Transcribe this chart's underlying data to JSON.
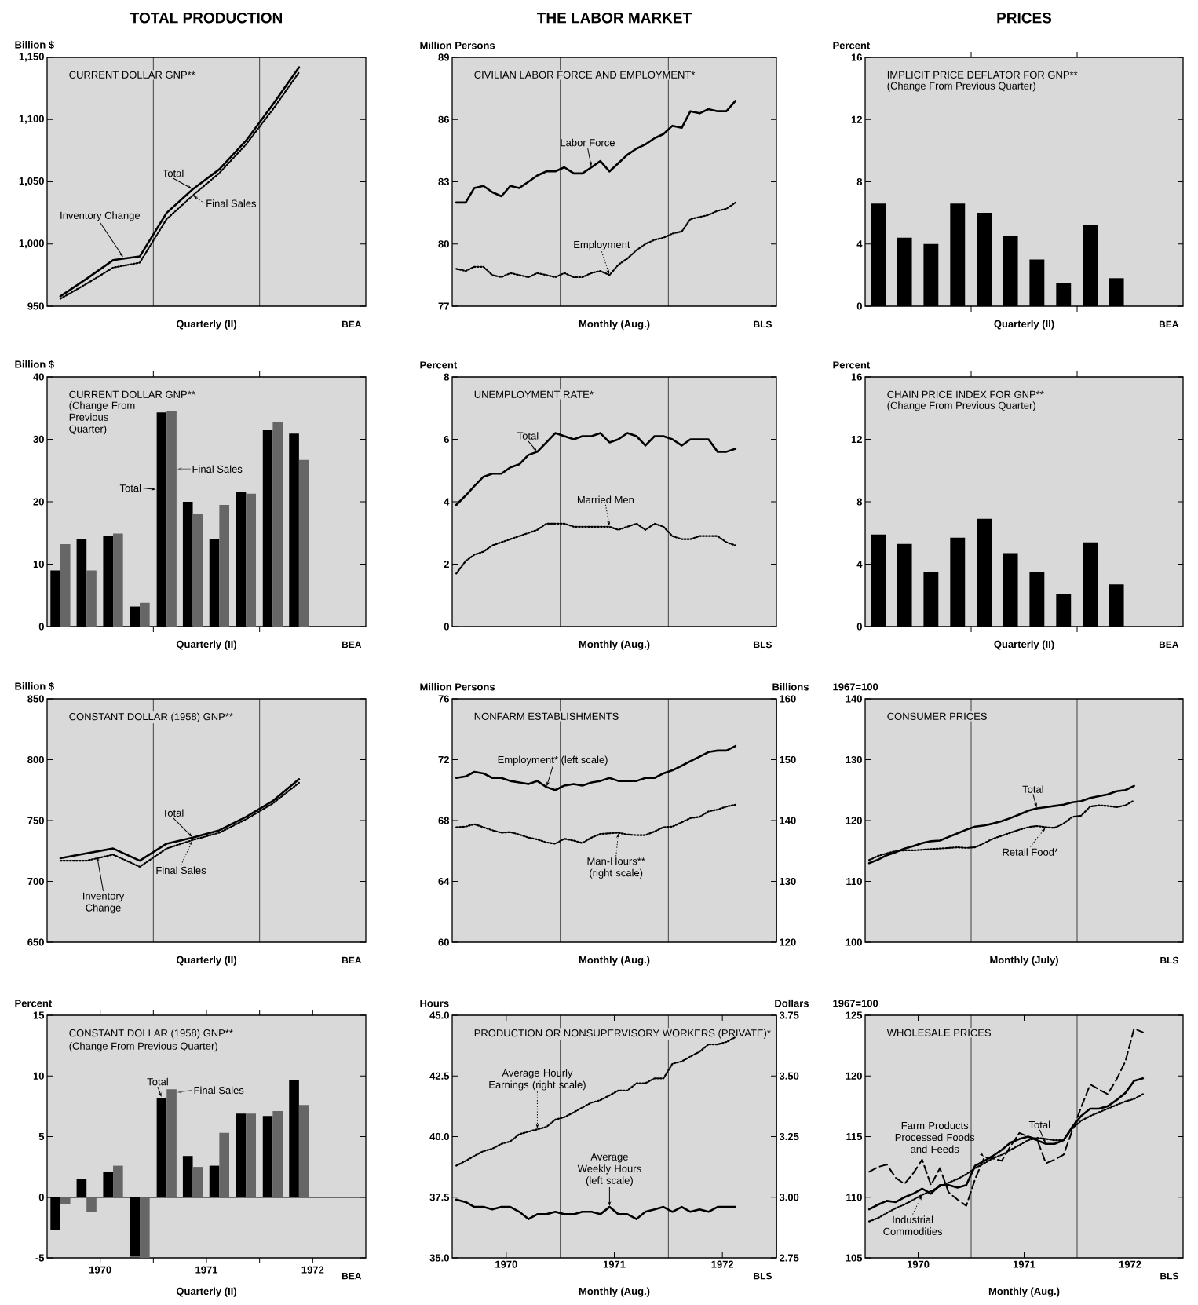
{
  "chart_data": [
    {
      "type": "line",
      "title": "CURRENT DOLLAR GNP**",
      "ylabel": "Billion $",
      "xlabel": "Quarterly (II)",
      "annotations": [
        "BEA",
        "TOTAL PRODUCTION",
        {
          "text": "Inventory Change",
          "x": "1970-09-20",
          "y": 989
        }
      ],
      "x": [
        "1970-02-15",
        "1970-05-15",
        "1970-08-15",
        "1970-11-15",
        "1971-02-15",
        "1971-05-15",
        "1971-08-15",
        "1971-11-15",
        "1972-02-15",
        "1972-05-15"
      ],
      "series": [
        {
          "name": "Total",
          "color": "#000000",
          "line_style": "solid",
          "values": [
            958,
            972,
            987,
            990,
            1025,
            1044,
            1060,
            1083,
            1112,
            1142
          ]
        },
        {
          "name": "Final Sales",
          "color": "#000000",
          "line_style": "dotted",
          "values": [
            956,
            968,
            981,
            985,
            1020,
            1039,
            1057,
            1080,
            1108,
            1138
          ]
        }
      ],
      "xlim": [
        "1970-01-01",
        "1973-01-01"
      ],
      "ylim": [
        950,
        1150
      ],
      "yticks": [
        950,
        {
          "value": 1000,
          "label": "1,000"
        },
        {
          "value": 1050,
          "label": "1,050"
        },
        {
          "value": 1100,
          "label": "1,100"
        },
        {
          "value": 1150,
          "label": "1,150"
        }
      ],
      "ref_lines": [
        {
          "axis": "x",
          "value": "1971-01-01"
        },
        {
          "axis": "x",
          "value": "1972-01-01"
        }
      ],
      "tick_labels": "y"
    },
    {
      "type": "line",
      "title": "CIVILIAN LABOR FORCE AND EMPLOYMENT*",
      "ylabel": "Million Persons",
      "xlabel": "Monthly (Aug.)",
      "annotations": [
        "BLS",
        "THE LABOR MARKET"
      ],
      "x": [
        "1970-01-15",
        "1970-02-15",
        "1970-03-15",
        "1970-04-15",
        "1970-05-15",
        "1970-06-15",
        "1970-07-15",
        "1970-08-15",
        "1970-09-15",
        "1970-10-15",
        "1970-11-15",
        "1970-12-15",
        "1971-01-15",
        "1971-02-15",
        "1971-03-15",
        "1971-04-15",
        "1971-05-15",
        "1971-06-15",
        "1971-07-15",
        "1971-08-15",
        "1971-09-15",
        "1971-10-15",
        "1971-11-15",
        "1971-12-15",
        "1972-01-15",
        "1972-02-15",
        "1972-03-15",
        "1972-04-15",
        "1972-05-15",
        "1972-06-15",
        "1972-07-15",
        "1972-08-15"
      ],
      "series": [
        {
          "name": "Labor Force",
          "color": "#000000",
          "line_style": "solid",
          "values": [
            82.0,
            82.0,
            82.7,
            82.8,
            82.5,
            82.3,
            82.8,
            82.7,
            83.0,
            83.3,
            83.5,
            83.5,
            83.7,
            83.4,
            83.4,
            83.7,
            84.0,
            83.5,
            83.9,
            84.3,
            84.6,
            84.8,
            85.1,
            85.3,
            85.7,
            85.6,
            86.4,
            86.3,
            86.5,
            86.4,
            86.4,
            86.9
          ]
        },
        {
          "name": "Employment",
          "color": "#000000",
          "line_style": "dotted",
          "values": [
            78.8,
            78.7,
            78.9,
            78.9,
            78.5,
            78.4,
            78.6,
            78.5,
            78.4,
            78.6,
            78.5,
            78.4,
            78.6,
            78.4,
            78.4,
            78.6,
            78.7,
            78.5,
            79.0,
            79.3,
            79.7,
            80.0,
            80.2,
            80.3,
            80.5,
            80.6,
            81.2,
            81.3,
            81.4,
            81.6,
            81.7,
            82.0
          ]
        }
      ],
      "xlim": [
        "1970-01-01",
        "1973-01-01"
      ],
      "ylim": [
        77,
        89
      ],
      "yticks": [
        77,
        80,
        83,
        86,
        89
      ],
      "ref_lines": [
        {
          "axis": "x",
          "value": "1971-01-01"
        },
        {
          "axis": "x",
          "value": "1972-01-01"
        }
      ],
      "tick_labels": "y"
    },
    {
      "type": "bar",
      "title": "IMPLICIT PRICE DEFLATOR FOR GNP**",
      "subtitle": "(Change From Previous Quarter)",
      "ylabel": "Percent",
      "xlabel": "Quarterly (II)",
      "annotations": [
        "BEA",
        "PRICES"
      ],
      "x": [
        "1970-02-15",
        "1970-05-15",
        "1970-08-15",
        "1970-11-15",
        "1971-02-15",
        "1971-05-15",
        "1971-08-15",
        "1971-11-15",
        "1972-02-15",
        "1972-05-15"
      ],
      "values": [
        6.6,
        4.4,
        4.0,
        6.6,
        6.0,
        4.5,
        3.0,
        1.5,
        5.2,
        1.8
      ],
      "color": "#000000",
      "xlim": [
        "1970-01-01",
        "1973-01-01"
      ],
      "ylim": [
        0,
        16
      ],
      "yticks": [
        0,
        4,
        8,
        12,
        16
      ],
      "xticks": [
        {
          "value": "1971-01-01",
          "label": null
        },
        {
          "value": "1972-01-01",
          "label": null
        }
      ],
      "tick_labels": "y"
    },
    {
      "type": "bar",
      "title": "CURRENT DOLLAR GNP**",
      "subtitle": "(Change From Previous Quarter)",
      "ylabel": "Billion $",
      "xlabel": "Quarterly (II)",
      "annotations": [
        "BEA"
      ],
      "x": [
        "1970-02-15",
        "1970-05-15",
        "1970-08-15",
        "1970-11-15",
        "1971-02-15",
        "1971-05-15",
        "1971-08-15",
        "1971-11-15",
        "1972-02-15",
        "1972-05-15"
      ],
      "series": [
        {
          "name": "Total",
          "color": "#000000",
          "values": [
            9.0,
            14.0,
            14.6,
            3.2,
            34.3,
            20.0,
            14.1,
            21.5,
            31.5,
            30.9
          ]
        },
        {
          "name": "Final Sales",
          "color": "#666666",
          "values": [
            13.2,
            9.0,
            14.9,
            3.8,
            34.6,
            18.0,
            19.5,
            21.3,
            32.8,
            26.7
          ]
        }
      ],
      "xlim": [
        "1970-01-01",
        "1973-01-01"
      ],
      "ylim": [
        0,
        40
      ],
      "yticks": [
        0,
        10,
        20,
        30,
        40
      ],
      "xticks": [
        {
          "value": "1971-01-01",
          "label": null
        },
        {
          "value": "1972-01-01",
          "label": null
        }
      ],
      "tick_labels": "y"
    },
    {
      "type": "line",
      "title": "UNEMPLOYMENT RATE*",
      "ylabel": "Percent",
      "xlabel": "Monthly (Aug.)",
      "annotations": [
        "BLS"
      ],
      "x": [
        "1970-01-15",
        "1970-02-15",
        "1970-03-15",
        "1970-04-15",
        "1970-05-15",
        "1970-06-15",
        "1970-07-15",
        "1970-08-15",
        "1970-09-15",
        "1970-10-15",
        "1970-11-15",
        "1970-12-15",
        "1971-01-15",
        "1971-02-15",
        "1971-03-15",
        "1971-04-15",
        "1971-05-15",
        "1971-06-15",
        "1971-07-15",
        "1971-08-15",
        "1971-09-15",
        "1971-10-15",
        "1971-11-15",
        "1971-12-15",
        "1972-01-15",
        "1972-02-15",
        "1972-03-15",
        "1972-04-15",
        "1972-05-15",
        "1972-06-15",
        "1972-07-15",
        "1972-08-15"
      ],
      "series": [
        {
          "name": "Total",
          "color": "#000000",
          "line_style": "solid",
          "values": [
            3.9,
            4.2,
            4.5,
            4.8,
            4.9,
            4.9,
            5.1,
            5.2,
            5.5,
            5.6,
            5.9,
            6.2,
            6.1,
            6.0,
            6.1,
            6.1,
            6.2,
            5.9,
            6.0,
            6.2,
            6.1,
            5.8,
            6.1,
            6.1,
            6.0,
            5.8,
            6.0,
            6.0,
            6.0,
            5.6,
            5.6,
            5.7
          ]
        },
        {
          "name": "Married Men",
          "color": "#000000",
          "line_style": "dotted",
          "values": [
            1.7,
            2.1,
            2.3,
            2.4,
            2.6,
            2.7,
            2.8,
            2.9,
            3.0,
            3.1,
            3.3,
            3.3,
            3.3,
            3.2,
            3.2,
            3.2,
            3.2,
            3.2,
            3.1,
            3.2,
            3.3,
            3.1,
            3.3,
            3.2,
            2.9,
            2.8,
            2.8,
            2.9,
            2.9,
            2.9,
            2.7,
            2.6
          ]
        }
      ],
      "xlim": [
        "1970-01-01",
        "1973-01-01"
      ],
      "ylim": [
        0,
        8
      ],
      "yticks": [
        0,
        2,
        4,
        6,
        8
      ],
      "ref_lines": [
        {
          "axis": "x",
          "value": "1971-01-01"
        },
        {
          "axis": "x",
          "value": "1972-01-01"
        }
      ],
      "tick_labels": "y"
    },
    {
      "type": "bar",
      "title": "CHAIN PRICE INDEX FOR GNP**",
      "subtitle": "(Change From Previous Quarter)",
      "ylabel": "Percent",
      "xlabel": "Quarterly (II)",
      "annotations": [
        "BEA"
      ],
      "x": [
        "1970-02-15",
        "1970-05-15",
        "1970-08-15",
        "1970-11-15",
        "1971-02-15",
        "1971-05-15",
        "1971-08-15",
        "1971-11-15",
        "1972-02-15",
        "1972-05-15"
      ],
      "values": [
        5.9,
        5.3,
        3.5,
        5.7,
        6.9,
        4.7,
        3.5,
        2.1,
        5.4,
        2.7
      ],
      "color": "#000000",
      "xlim": [
        "1970-01-01",
        "1973-01-01"
      ],
      "ylim": [
        0,
        16
      ],
      "yticks": [
        0,
        4,
        8,
        12,
        16
      ],
      "xticks": [
        {
          "value": "1971-01-01",
          "label": null
        },
        {
          "value": "1972-01-01",
          "label": null
        }
      ],
      "tick_labels": "y"
    },
    {
      "type": "line",
      "title": "CONSTANT DOLLAR (1958) GNP**",
      "ylabel": "Billion $",
      "xlabel": "Quarterly (II)",
      "annotations": [
        "BEA",
        {
          "text": "Inventory Change",
          "x": "1970-06-20",
          "y": 721
        }
      ],
      "x": [
        "1970-02-15",
        "1970-05-15",
        "1970-08-15",
        "1970-11-15",
        "1971-02-15",
        "1971-05-15",
        "1971-08-15",
        "1971-11-15",
        "1972-02-15",
        "1972-05-15"
      ],
      "series": [
        {
          "name": "Total",
          "color": "#000000",
          "line_style": "solid",
          "values": [
            719,
            723,
            727,
            717,
            731,
            736,
            742,
            753,
            766,
            784
          ]
        },
        {
          "name": "Final Sales",
          "color": "#000000",
          "line_style": "dotted",
          "values": [
            717,
            717,
            722,
            712,
            727,
            734,
            740,
            751,
            764,
            781
          ]
        }
      ],
      "xlim": [
        "1970-01-01",
        "1973-01-01"
      ],
      "ylim": [
        650,
        850
      ],
      "yticks": [
        650,
        700,
        750,
        800,
        850
      ],
      "ref_lines": [
        {
          "axis": "x",
          "value": "1971-01-01"
        },
        {
          "axis": "x",
          "value": "1972-01-01"
        }
      ],
      "tick_labels": "y"
    },
    {
      "type": "line",
      "title": "NONFARM ESTABLISHMENTS",
      "ylabel": "Million Persons",
      "y2label": "Billions",
      "xlabel": "Monthly (Aug.)",
      "x": [
        "1970-01-15",
        "1970-02-15",
        "1970-03-15",
        "1970-04-15",
        "1970-05-15",
        "1970-06-15",
        "1970-07-15",
        "1970-08-15",
        "1970-09-15",
        "1970-10-15",
        "1970-11-15",
        "1970-12-15",
        "1971-01-15",
        "1971-02-15",
        "1971-03-15",
        "1971-04-15",
        "1971-05-15",
        "1971-06-15",
        "1971-07-15",
        "1971-08-15",
        "1971-09-15",
        "1971-10-15",
        "1971-11-15",
        "1971-12-15",
        "1972-01-15",
        "1972-02-15",
        "1972-03-15",
        "1972-04-15",
        "1972-05-15",
        "1972-06-15",
        "1972-07-15",
        "1972-08-15"
      ],
      "series": [
        {
          "name": "Employment* (left scale)",
          "color": "#000000",
          "line_style": "solid",
          "values": [
            70.8,
            70.9,
            71.2,
            71.1,
            70.8,
            70.8,
            70.6,
            70.5,
            70.4,
            70.6,
            70.2,
            70.0,
            70.3,
            70.4,
            70.3,
            70.5,
            70.6,
            70.8,
            70.6,
            70.6,
            70.6,
            70.8,
            70.8,
            71.1,
            71.3,
            71.6,
            71.9,
            72.2,
            72.5,
            72.6,
            72.6,
            72.9
          ]
        },
        {
          "name": "Man-Hours** (right scale)",
          "color": "#000000",
          "line_style": "dotted",
          "axis": "y2",
          "values": [
            138.9,
            139.0,
            139.4,
            138.9,
            138.4,
            138.0,
            138.1,
            137.7,
            137.2,
            136.9,
            136.4,
            136.2,
            137.0,
            136.7,
            136.3,
            137.2,
            137.8,
            137.9,
            138.0,
            137.7,
            137.6,
            137.6,
            138.2,
            138.9,
            139.0,
            139.7,
            140.4,
            140.6,
            141.5,
            141.8,
            142.3,
            142.6
          ]
        }
      ],
      "xlim": [
        "1970-01-01",
        "1973-01-01"
      ],
      "ylim": [
        60,
        76
      ],
      "yticks": [
        60,
        64,
        68,
        72,
        76
      ],
      "y2lim": [
        120,
        160
      ],
      "y2ticks": [
        120,
        130,
        140,
        150,
        160
      ],
      "ref_lines": [
        {
          "axis": "x",
          "value": "1971-01-01"
        },
        {
          "axis": "x",
          "value": "1972-01-01"
        }
      ],
      "tick_labels": [
        "y",
        "y2"
      ]
    },
    {
      "type": "line",
      "title": "CONSUMER PRICES",
      "ylabel": "1967=100",
      "xlabel": "Monthly (July)",
      "annotations": [
        "BLS"
      ],
      "x": [
        "1970-01-15",
        "1970-02-15",
        "1970-03-15",
        "1970-04-15",
        "1970-05-15",
        "1970-06-15",
        "1970-07-15",
        "1970-08-15",
        "1970-09-15",
        "1970-10-15",
        "1970-11-15",
        "1970-12-15",
        "1971-01-15",
        "1971-02-15",
        "1971-03-15",
        "1971-04-15",
        "1971-05-15",
        "1971-06-15",
        "1971-07-15",
        "1971-08-15",
        "1971-09-15",
        "1971-10-15",
        "1971-11-15",
        "1971-12-15",
        "1972-01-15",
        "1972-02-15",
        "1972-03-15",
        "1972-04-15",
        "1972-05-15",
        "1972-06-15",
        "1972-07-15"
      ],
      "series": [
        {
          "name": "Total",
          "color": "#000000",
          "line_style": "solid",
          "values": [
            113.0,
            113.6,
            114.3,
            114.8,
            115.4,
            115.8,
            116.3,
            116.6,
            116.7,
            117.3,
            117.9,
            118.5,
            119.0,
            119.2,
            119.5,
            119.9,
            120.4,
            121.0,
            121.6,
            122.0,
            122.2,
            122.4,
            122.6,
            123.0,
            123.2,
            123.7,
            124.0,
            124.3,
            124.8,
            125.0,
            125.7
          ]
        },
        {
          "name": "Retail Food*",
          "color": "#000000",
          "line_style": "dotted",
          "values": [
            113.5,
            114.2,
            114.6,
            115.0,
            115.1,
            115.1,
            115.2,
            115.3,
            115.4,
            115.5,
            115.6,
            115.5,
            115.6,
            116.3,
            117.0,
            117.5,
            118.0,
            118.5,
            118.9,
            119.1,
            118.9,
            118.8,
            119.5,
            120.6,
            120.8,
            122.3,
            122.5,
            122.4,
            122.2,
            122.5,
            123.3
          ]
        }
      ],
      "xlim": [
        "1970-01-01",
        "1973-01-01"
      ],
      "ylim": [
        100,
        140
      ],
      "yticks": [
        100,
        110,
        120,
        130,
        140
      ],
      "ref_lines": [
        {
          "axis": "x",
          "value": "1971-01-01"
        },
        {
          "axis": "x",
          "value": "1972-01-01"
        }
      ],
      "tick_labels": "y"
    },
    {
      "type": "bar",
      "title": "CONSTANT DOLLAR (1958) GNP**",
      "subtitle": "(Change From Previous Quarter)",
      "ylabel": "Percent",
      "xlabel": "Quarterly (II)",
      "annotations": [
        "BEA"
      ],
      "x": [
        "1970-02-15",
        "1970-05-15",
        "1970-08-15",
        "1970-11-15",
        "1971-02-15",
        "1971-05-15",
        "1971-08-15",
        "1971-11-15",
        "1972-02-15",
        "1972-05-15"
      ],
      "series": [
        {
          "name": "Total",
          "color": "#000000",
          "values": [
            -2.7,
            1.5,
            2.1,
            -4.9,
            8.2,
            3.4,
            2.6,
            6.9,
            6.7,
            9.7
          ]
        },
        {
          "name": "Final Sales",
          "color": "#666666",
          "values": [
            -0.6,
            -1.2,
            2.6,
            -5.0,
            8.9,
            2.5,
            5.3,
            6.9,
            7.1,
            7.6
          ]
        }
      ],
      "xlim": [
        "1970-01-01",
        "1973-01-01"
      ],
      "ylim": [
        -5,
        15
      ],
      "yticks": [
        -5,
        0,
        5,
        10,
        15
      ],
      "xticks": [
        {
          "value": "1970-07-01",
          "label": "1970"
        },
        {
          "value": "1971-01-01",
          "label": null
        },
        {
          "value": "1971-07-01",
          "label": "1971"
        },
        {
          "value": "1972-01-01",
          "label": null
        },
        {
          "value": "1972-07-01",
          "label": "1972"
        }
      ],
      "ref_lines": [
        {
          "axis": "y",
          "value": 0
        }
      ]
    },
    {
      "type": "line",
      "title": "PRODUCTION OR NONSUPERVISORY WORKERS (PRIVATE)*",
      "ylabel": "Hours",
      "y2label": "Dollars",
      "xlabel": "Monthly (Aug.)",
      "annotations": [
        "BLS"
      ],
      "x": [
        "1970-01-15",
        "1970-02-15",
        "1970-03-15",
        "1970-04-15",
        "1970-05-15",
        "1970-06-15",
        "1970-07-15",
        "1970-08-15",
        "1970-09-15",
        "1970-10-15",
        "1970-11-15",
        "1970-12-15",
        "1971-01-15",
        "1971-02-15",
        "1971-03-15",
        "1971-04-15",
        "1971-05-15",
        "1971-06-15",
        "1971-07-15",
        "1971-08-15",
        "1971-09-15",
        "1971-10-15",
        "1971-11-15",
        "1971-12-15",
        "1972-01-15",
        "1972-02-15",
        "1972-03-15",
        "1972-04-15",
        "1972-05-15",
        "1972-06-15",
        "1972-07-15",
        "1972-08-15"
      ],
      "series": [
        {
          "name": "Average Weekly Hours (left scale)",
          "color": "#000000",
          "line_style": "solid",
          "values": [
            37.4,
            37.3,
            37.1,
            37.1,
            37.0,
            37.1,
            37.1,
            36.9,
            36.6,
            36.8,
            36.8,
            36.9,
            36.8,
            36.8,
            36.9,
            36.9,
            36.8,
            37.1,
            36.8,
            36.8,
            36.6,
            36.9,
            37.0,
            37.1,
            36.9,
            37.1,
            36.9,
            37.0,
            36.9,
            37.1,
            37.1,
            37.1
          ]
        },
        {
          "name": "Average Hourly Earnings (right scale)",
          "color": "#000000",
          "line_style": "dotted",
          "axis": "y2",
          "values": [
            3.13,
            3.15,
            3.17,
            3.19,
            3.2,
            3.22,
            3.23,
            3.26,
            3.27,
            3.28,
            3.29,
            3.32,
            3.33,
            3.35,
            3.37,
            3.39,
            3.4,
            3.42,
            3.44,
            3.44,
            3.47,
            3.47,
            3.49,
            3.49,
            3.55,
            3.56,
            3.58,
            3.6,
            3.63,
            3.63,
            3.64,
            3.66
          ]
        }
      ],
      "xlim": [
        "1970-01-01",
        "1973-01-01"
      ],
      "ylim": [
        35,
        45
      ],
      "yticks": [
        {
          "value": 35,
          "label": "35.0"
        },
        37.5,
        {
          "value": 40,
          "label": "40.0"
        },
        42.5,
        {
          "value": 45,
          "label": "45.0"
        }
      ],
      "y2lim": [
        2.75,
        3.75
      ],
      "y2ticks": [
        2.75,
        {
          "value": 3,
          "label": "3.00"
        },
        3.25,
        {
          "value": 3.5,
          "label": "3.50"
        },
        3.75
      ],
      "xticks": [
        {
          "value": "1970-07-01",
          "label": "1970"
        },
        {
          "value": "1971-07-01",
          "label": "1971"
        },
        {
          "value": "1972-07-01",
          "label": "1972"
        }
      ],
      "ref_lines": [
        {
          "axis": "x",
          "value": "1971-01-01"
        },
        {
          "axis": "x",
          "value": "1972-01-01"
        }
      ]
    },
    {
      "type": "line",
      "title": "WHOLESALE PRICES",
      "ylabel": "1967=100",
      "xlabel": "Monthly (Aug.)",
      "annotations": [
        "BLS"
      ],
      "x": [
        "1970-01-15",
        "1970-02-15",
        "1970-03-15",
        "1970-04-15",
        "1970-05-15",
        "1970-06-15",
        "1970-07-15",
        "1970-08-15",
        "1970-09-15",
        "1970-10-15",
        "1970-11-15",
        "1970-12-15",
        "1971-01-15",
        "1971-02-15",
        "1971-03-15",
        "1971-04-15",
        "1971-05-15",
        "1971-06-15",
        "1971-07-15",
        "1971-08-15",
        "1971-09-15",
        "1971-10-15",
        "1971-11-15",
        "1971-12-15",
        "1972-01-15",
        "1972-02-15",
        "1972-03-15",
        "1972-04-15",
        "1972-05-15",
        "1972-06-15",
        "1972-07-15",
        "1972-08-15"
      ],
      "series": [
        {
          "name": "Total",
          "color": "#000000",
          "line_style": "solid",
          "values": [
            109.0,
            109.4,
            109.7,
            109.6,
            110.0,
            110.3,
            110.7,
            110.3,
            111.0,
            111.0,
            110.8,
            111.0,
            112.6,
            113.0,
            113.4,
            113.9,
            114.5,
            114.8,
            115.0,
            114.7,
            114.4,
            114.4,
            114.7,
            115.8,
            116.7,
            117.3,
            117.3,
            117.5,
            118.0,
            118.6,
            119.6,
            119.8
          ]
        },
        {
          "name": "Farm Products Processed Foods and Feeds",
          "color": "#000000",
          "line_style": "dashed",
          "values": [
            112.1,
            112.5,
            112.7,
            111.6,
            111.1,
            112.0,
            113.1,
            111.0,
            112.4,
            110.4,
            109.8,
            109.3,
            111.5,
            113.3,
            113.2,
            113.0,
            114.2,
            115.3,
            115.0,
            114.8,
            112.8,
            113.1,
            113.5,
            115.5,
            117.4,
            119.3,
            118.9,
            118.5,
            119.7,
            121.2,
            123.9,
            123.6
          ]
        },
        {
          "name": "Industrial Commodities",
          "color": "#000000",
          "line_style": "dotted",
          "values": [
            108.0,
            108.3,
            108.7,
            109.1,
            109.4,
            109.8,
            110.2,
            110.5,
            110.9,
            111.2,
            111.5,
            111.9,
            112.4,
            112.8,
            113.2,
            113.5,
            113.9,
            114.3,
            114.7,
            114.9,
            114.8,
            114.7,
            114.7,
            115.7,
            116.3,
            116.7,
            117.0,
            117.3,
            117.6,
            117.9,
            118.1,
            118.5
          ]
        }
      ],
      "xlim": [
        "1970-01-01",
        "1973-01-01"
      ],
      "ylim": [
        105,
        125
      ],
      "yticks": [
        105,
        110,
        115,
        120,
        125
      ],
      "xticks": [
        {
          "value": "1970-07-01",
          "label": "1970"
        },
        {
          "value": "1971-07-01",
          "label": "1971"
        },
        {
          "value": "1972-07-01",
          "label": "1972"
        }
      ],
      "ref_lines": [
        {
          "axis": "x",
          "value": "1971-01-01"
        },
        {
          "axis": "x",
          "value": "1972-01-01"
        }
      ]
    }
  ]
}
